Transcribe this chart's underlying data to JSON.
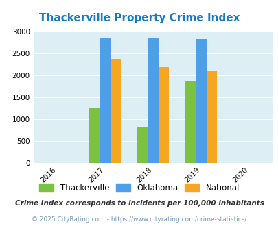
{
  "title": "Thackerville Property Crime Index",
  "title_color": "#1a7abf",
  "years": [
    2016,
    2017,
    2018,
    2019,
    2020
  ],
  "bar_years": [
    2017,
    2018,
    2019
  ],
  "thackerville": [
    1260,
    830,
    1860
  ],
  "oklahoma": [
    2860,
    2860,
    2830
  ],
  "national": [
    2370,
    2190,
    2100
  ],
  "bar_colors": {
    "thackerville": "#7bc142",
    "oklahoma": "#4d9fea",
    "national": "#f5a623"
  },
  "ylim": [
    0,
    3000
  ],
  "yticks": [
    0,
    500,
    1000,
    1500,
    2000,
    2500,
    3000
  ],
  "bg_color": "#ddeef5",
  "legend_labels": [
    "Thackerville",
    "Oklahoma",
    "National"
  ],
  "footnote1": "Crime Index corresponds to incidents per 100,000 inhabitants",
  "footnote2": "© 2025 CityRating.com - https://www.cityrating.com/crime-statistics/",
  "footnote1_color": "#333333",
  "footnote2_color": "#7a9abf",
  "bar_width": 0.22
}
